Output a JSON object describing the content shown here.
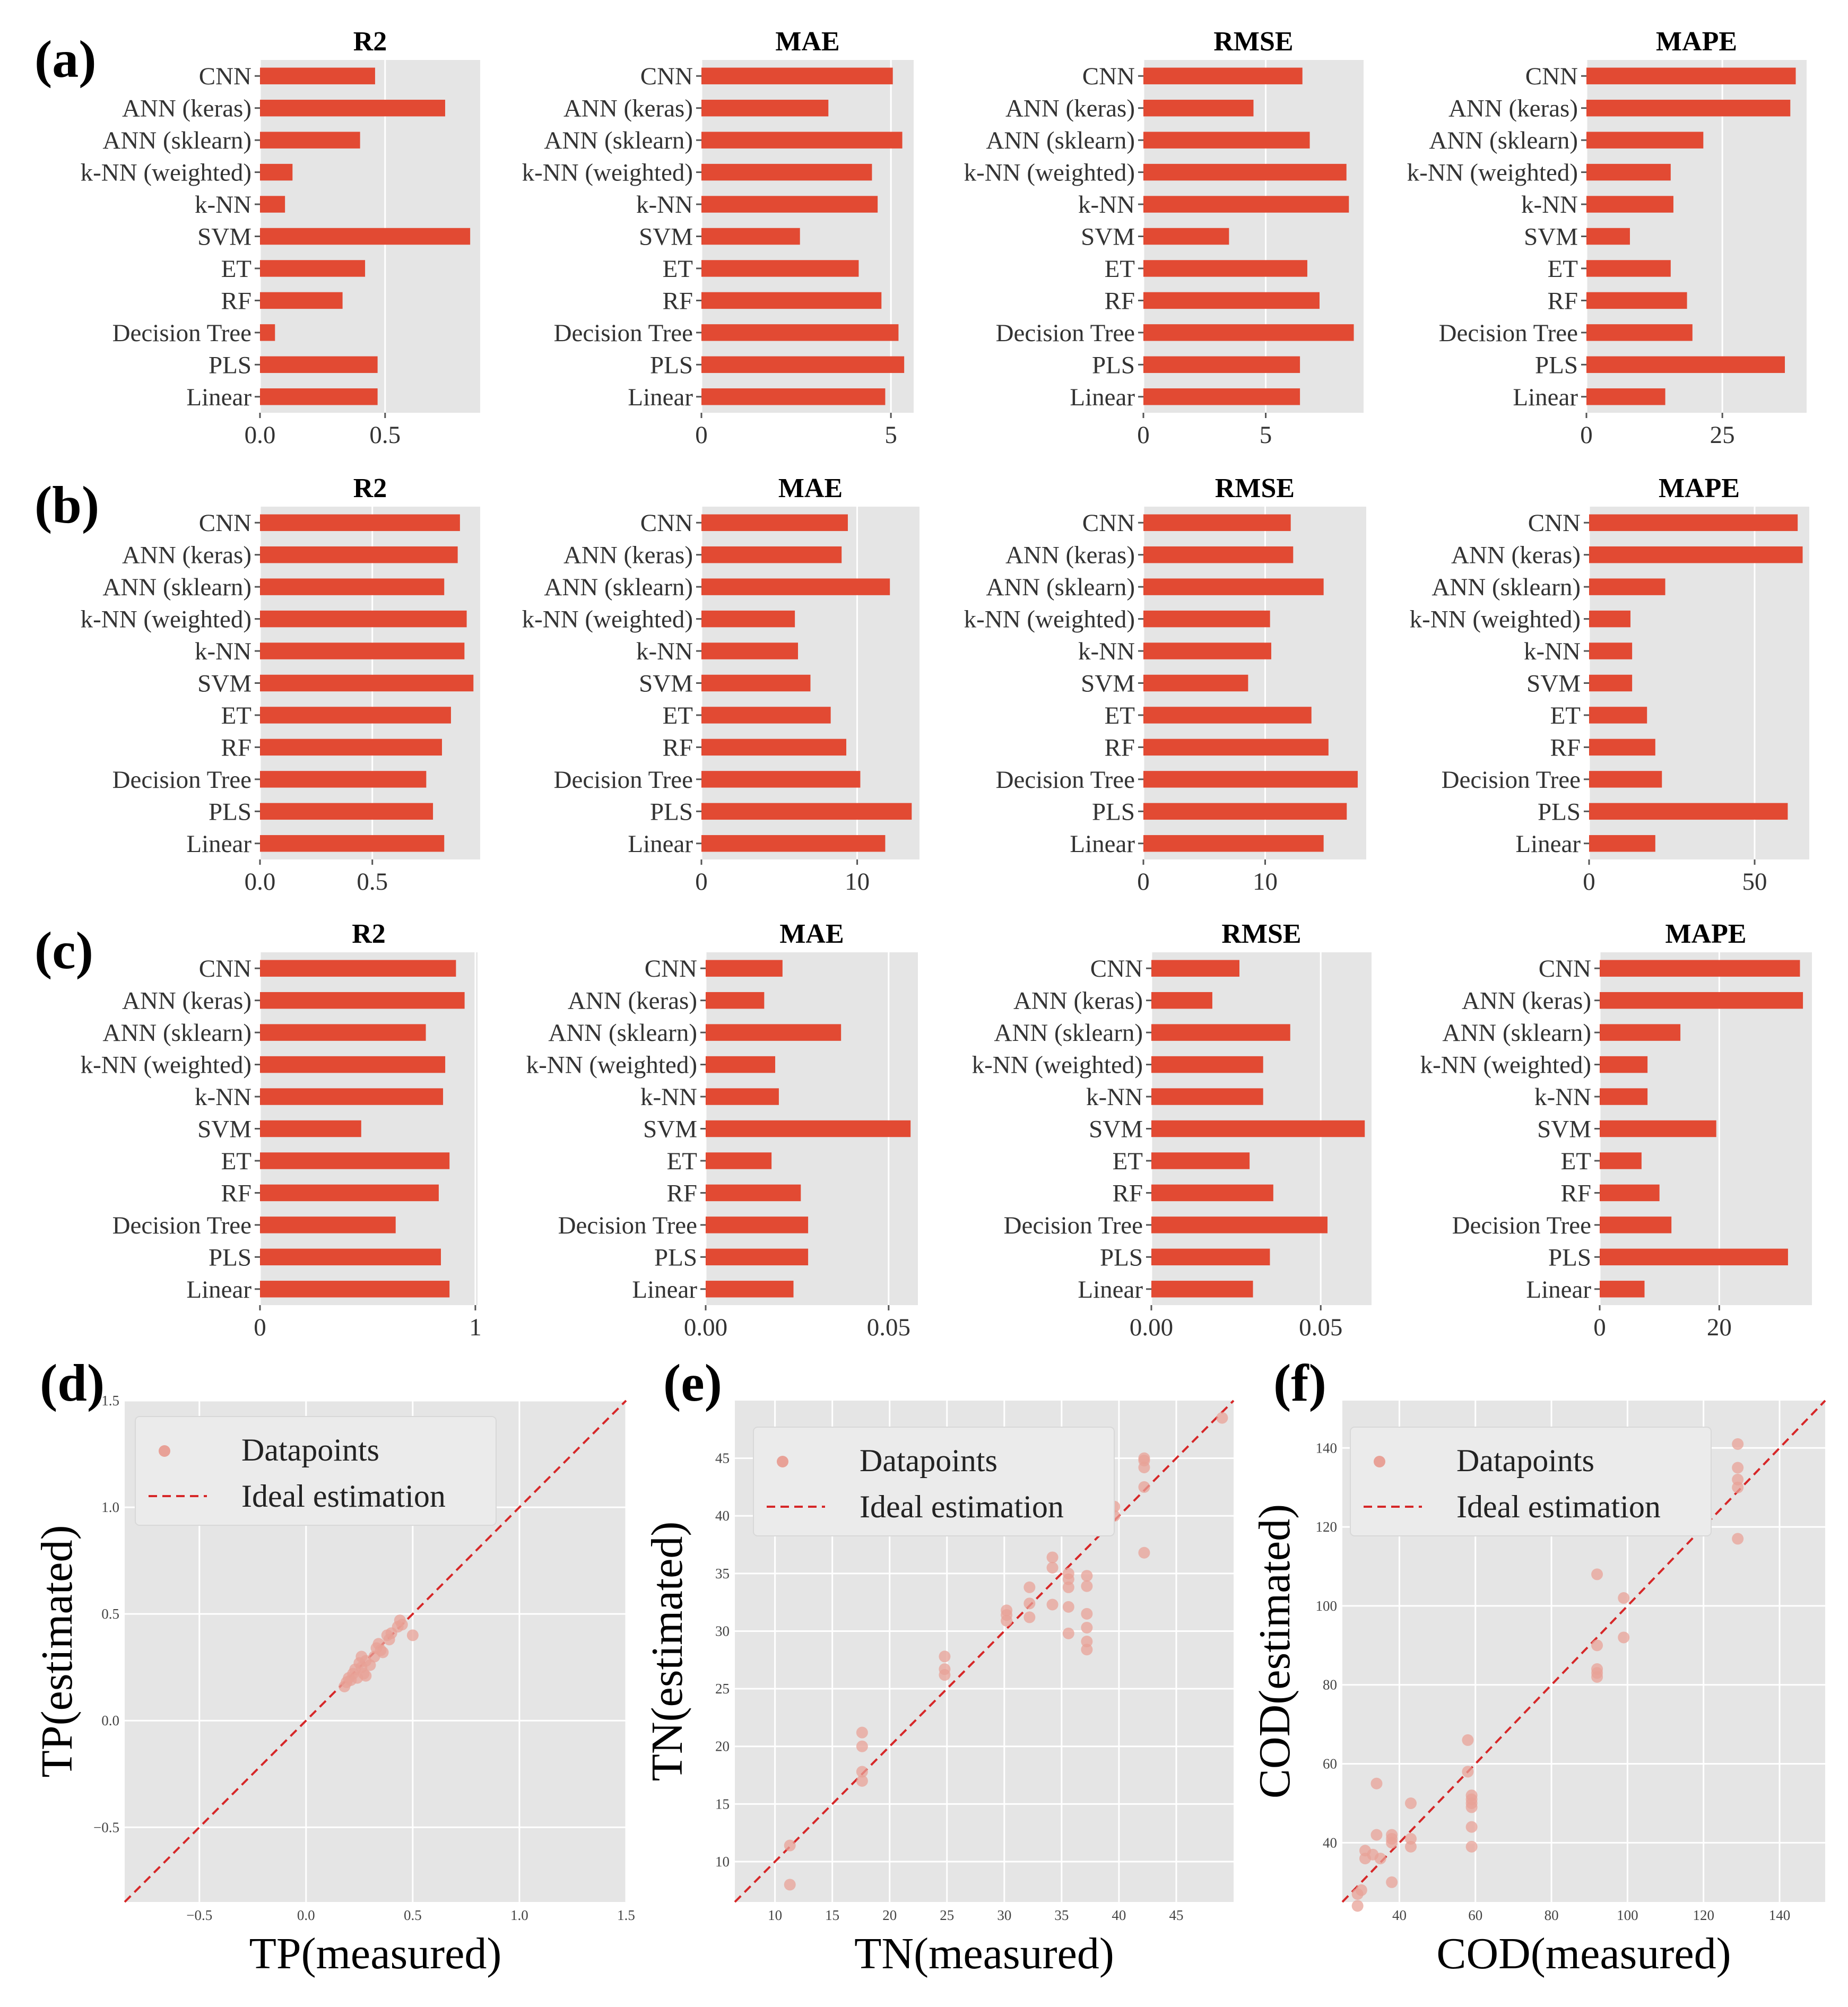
{
  "colors": {
    "bar": "#e24a33",
    "panel_bg": "#e5e5e5",
    "grid": "#ffffff",
    "ideal_line": "#d62728",
    "scatter": "#e8a197",
    "text": "#262626"
  },
  "bar_categories": [
    "CNN",
    "ANN (keras)",
    "ANN (sklearn)",
    "k-NN (weighted)",
    "k-NN",
    "SVM",
    "ET",
    "RF",
    "Decision Tree",
    "PLS",
    "Linear"
  ],
  "legend": {
    "datapoints": "Datapoints",
    "ideal": "Ideal estimation"
  },
  "chart_data": [
    {
      "id": "a-R2",
      "panel": "(a)",
      "type": "bar",
      "orientation": "horizontal",
      "title": "R2",
      "categories": [
        "CNN",
        "ANN (keras)",
        "ANN (sklearn)",
        "k-NN (weighted)",
        "k-NN",
        "SVM",
        "ET",
        "RF",
        "Decision Tree",
        "PLS",
        "Linear"
      ],
      "values": [
        0.46,
        0.74,
        0.4,
        0.13,
        0.1,
        0.84,
        0.42,
        0.33,
        0.06,
        0.47,
        0.47
      ],
      "xlim": [
        0,
        0.88
      ],
      "xticks": [
        0,
        0.5
      ],
      "xtick_labels": [
        "0.0",
        "0.5"
      ]
    },
    {
      "id": "a-MAE",
      "panel": "(a)",
      "type": "bar",
      "orientation": "horizontal",
      "title": "MAE",
      "categories": [
        "CNN",
        "ANN (keras)",
        "ANN (sklearn)",
        "k-NN (weighted)",
        "k-NN",
        "SVM",
        "ET",
        "RF",
        "Decision Tree",
        "PLS",
        "Linear"
      ],
      "values": [
        5.05,
        3.35,
        5.3,
        4.5,
        4.65,
        2.6,
        4.15,
        4.75,
        5.2,
        5.35,
        4.85
      ],
      "xlim": [
        0,
        5.6
      ],
      "xticks": [
        0,
        5
      ],
      "xtick_labels": [
        "0",
        "5"
      ]
    },
    {
      "id": "a-RMSE",
      "panel": "(a)",
      "type": "bar",
      "orientation": "horizontal",
      "title": "RMSE",
      "categories": [
        "CNN",
        "ANN (keras)",
        "ANN (sklearn)",
        "k-NN (weighted)",
        "k-NN",
        "SVM",
        "ET",
        "RF",
        "Decision Tree",
        "PLS",
        "Linear"
      ],
      "values": [
        6.5,
        4.5,
        6.8,
        8.3,
        8.4,
        3.5,
        6.7,
        7.2,
        8.6,
        6.4,
        6.4
      ],
      "xlim": [
        0,
        9.0
      ],
      "xticks": [
        0,
        5
      ],
      "xtick_labels": [
        "0",
        "5"
      ]
    },
    {
      "id": "a-MAPE",
      "panel": "(a)",
      "type": "bar",
      "orientation": "horizontal",
      "title": "MAPE",
      "categories": [
        "CNN",
        "ANN (keras)",
        "ANN (sklearn)",
        "k-NN (weighted)",
        "k-NN",
        "SVM",
        "ET",
        "RF",
        "Decision Tree",
        "PLS",
        "Linear"
      ],
      "values": [
        38.5,
        37.5,
        21.5,
        15.5,
        16.0,
        8.0,
        15.5,
        18.5,
        19.5,
        36.5,
        14.5
      ],
      "xlim": [
        0,
        40.5
      ],
      "xticks": [
        0,
        25
      ],
      "xtick_labels": [
        "0",
        "25"
      ]
    },
    {
      "id": "b-R2",
      "panel": "(b)",
      "type": "bar",
      "orientation": "horizontal",
      "title": "R2",
      "categories": [
        "CNN",
        "ANN (keras)",
        "ANN (sklearn)",
        "k-NN (weighted)",
        "k-NN",
        "SVM",
        "ET",
        "RF",
        "Decision Tree",
        "PLS",
        "Linear"
      ],
      "values": [
        0.89,
        0.88,
        0.82,
        0.92,
        0.91,
        0.95,
        0.85,
        0.81,
        0.74,
        0.77,
        0.82
      ],
      "xlim": [
        0,
        0.98
      ],
      "xticks": [
        0,
        0.5
      ],
      "xtick_labels": [
        "0.0",
        "0.5"
      ]
    },
    {
      "id": "b-MAE",
      "panel": "(b)",
      "type": "bar",
      "orientation": "horizontal",
      "title": "MAE",
      "categories": [
        "CNN",
        "ANN (keras)",
        "ANN (sklearn)",
        "k-NN (weighted)",
        "k-NN",
        "SVM",
        "ET",
        "RF",
        "Decision Tree",
        "PLS",
        "Linear"
      ],
      "values": [
        9.4,
        9.0,
        12.1,
        6.0,
        6.2,
        7.0,
        8.3,
        9.3,
        10.2,
        13.5,
        11.8
      ],
      "xlim": [
        0,
        14.0
      ],
      "xticks": [
        0,
        10
      ],
      "xtick_labels": [
        "0",
        "10"
      ]
    },
    {
      "id": "b-RMSE",
      "panel": "(b)",
      "type": "bar",
      "orientation": "horizontal",
      "title": "RMSE",
      "categories": [
        "CNN",
        "ANN (keras)",
        "ANN (sklearn)",
        "k-NN (weighted)",
        "k-NN",
        "SVM",
        "ET",
        "RF",
        "Decision Tree",
        "PLS",
        "Linear"
      ],
      "values": [
        12.1,
        12.3,
        14.8,
        10.4,
        10.5,
        8.6,
        13.8,
        15.2,
        17.6,
        16.7,
        14.8
      ],
      "xlim": [
        0,
        18.3
      ],
      "xticks": [
        0,
        10
      ],
      "xtick_labels": [
        "0",
        "10"
      ]
    },
    {
      "id": "b-MAPE",
      "panel": "(b)",
      "type": "bar",
      "orientation": "horizontal",
      "title": "MAPE",
      "categories": [
        "CNN",
        "ANN (keras)",
        "ANN (sklearn)",
        "k-NN (weighted)",
        "k-NN",
        "SVM",
        "ET",
        "RF",
        "Decision Tree",
        "PLS",
        "Linear"
      ],
      "values": [
        63,
        64.5,
        23,
        12.5,
        13,
        13,
        17.5,
        20,
        22,
        60,
        20
      ],
      "xlim": [
        0,
        66.5
      ],
      "xticks": [
        0,
        50
      ],
      "xtick_labels": [
        "0",
        "50"
      ]
    },
    {
      "id": "c-R2",
      "panel": "(c)",
      "type": "bar",
      "orientation": "horizontal",
      "title": "R2",
      "categories": [
        "CNN",
        "ANN (keras)",
        "ANN (sklearn)",
        "k-NN (weighted)",
        "k-NN",
        "SVM",
        "ET",
        "RF",
        "Decision Tree",
        "PLS",
        "Linear"
      ],
      "values": [
        0.91,
        0.95,
        0.77,
        0.86,
        0.85,
        0.47,
        0.88,
        0.83,
        0.63,
        0.84,
        0.88
      ],
      "xlim": [
        0,
        1.01
      ],
      "xticks": [
        0,
        1
      ],
      "xtick_labels": [
        "0",
        "1"
      ]
    },
    {
      "id": "c-MAE",
      "panel": "(c)",
      "type": "bar",
      "orientation": "horizontal",
      "title": "MAE",
      "categories": [
        "CNN",
        "ANN (keras)",
        "ANN (sklearn)",
        "k-NN (weighted)",
        "k-NN",
        "SVM",
        "ET",
        "RF",
        "Decision Tree",
        "PLS",
        "Linear"
      ],
      "values": [
        0.021,
        0.016,
        0.037,
        0.019,
        0.02,
        0.056,
        0.018,
        0.026,
        0.028,
        0.028,
        0.024
      ],
      "xlim": [
        0,
        0.058
      ],
      "xticks": [
        0,
        0.05
      ],
      "xtick_labels": [
        "0.00",
        "0.05"
      ]
    },
    {
      "id": "c-RMSE",
      "panel": "(c)",
      "type": "bar",
      "orientation": "horizontal",
      "title": "RMSE",
      "categories": [
        "CNN",
        "ANN (keras)",
        "ANN (sklearn)",
        "k-NN (weighted)",
        "k-NN",
        "SVM",
        "ET",
        "RF",
        "Decision Tree",
        "PLS",
        "Linear"
      ],
      "values": [
        0.026,
        0.018,
        0.041,
        0.033,
        0.033,
        0.063,
        0.029,
        0.036,
        0.052,
        0.035,
        0.03
      ],
      "xlim": [
        0,
        0.065
      ],
      "xticks": [
        0,
        0.05
      ],
      "xtick_labels": [
        "0.00",
        "0.05"
      ]
    },
    {
      "id": "c-MAPE",
      "panel": "(c)",
      "type": "bar",
      "orientation": "horizontal",
      "title": "MAPE",
      "categories": [
        "CNN",
        "ANN (keras)",
        "ANN (sklearn)",
        "k-NN (weighted)",
        "k-NN",
        "SVM",
        "ET",
        "RF",
        "Decision Tree",
        "PLS",
        "Linear"
      ],
      "values": [
        33.5,
        34,
        13.5,
        8,
        8,
        19.5,
        7,
        10,
        12,
        31.5,
        7.5
      ],
      "xlim": [
        0,
        35.5
      ],
      "xticks": [
        0,
        20
      ],
      "xtick_labels": [
        "0",
        "20"
      ]
    },
    {
      "id": "d",
      "panel": "(d)",
      "type": "scatter",
      "xlabel": "TP(measured)",
      "ylabel": "TP(estimated)",
      "xlim": [
        -0.85,
        1.5
      ],
      "ylim": [
        -0.85,
        1.5
      ],
      "xticks": [
        -0.5,
        0.0,
        0.5,
        1.0,
        1.5
      ],
      "xtick_labels": [
        "−0.5",
        "0.0",
        "0.5",
        "1.0",
        "1.5"
      ],
      "yticks": [
        -0.5,
        0.0,
        0.5,
        1.0,
        1.5
      ],
      "ytick_labels": [
        "−0.5",
        "0.0",
        "0.5",
        "1.0",
        "1.5"
      ],
      "legend_position": "top-left",
      "points": [
        [
          0.18,
          0.16
        ],
        [
          0.19,
          0.18
        ],
        [
          0.2,
          0.2
        ],
        [
          0.21,
          0.19
        ],
        [
          0.22,
          0.22
        ],
        [
          0.23,
          0.24
        ],
        [
          0.24,
          0.2
        ],
        [
          0.25,
          0.27
        ],
        [
          0.26,
          0.25
        ],
        [
          0.27,
          0.22
        ],
        [
          0.28,
          0.28
        ],
        [
          0.3,
          0.26
        ],
        [
          0.32,
          0.3
        ],
        [
          0.33,
          0.34
        ],
        [
          0.34,
          0.36
        ],
        [
          0.35,
          0.33
        ],
        [
          0.36,
          0.32
        ],
        [
          0.38,
          0.4
        ],
        [
          0.39,
          0.38
        ],
        [
          0.4,
          0.41
        ],
        [
          0.43,
          0.44
        ],
        [
          0.44,
          0.47
        ],
        [
          0.45,
          0.45
        ],
        [
          0.5,
          0.4
        ],
        [
          0.26,
          0.3
        ],
        [
          0.28,
          0.21
        ]
      ]
    },
    {
      "id": "e",
      "panel": "(e)",
      "type": "scatter",
      "xlabel": "TN(measured)",
      "ylabel": "TN(estimated)",
      "xlim": [
        6.5,
        50
      ],
      "ylim": [
        6.5,
        50
      ],
      "xticks": [
        10,
        15,
        20,
        25,
        30,
        35,
        40,
        45
      ],
      "xtick_labels": [
        "10",
        "15",
        "20",
        "25",
        "30",
        "35",
        "40",
        "45"
      ],
      "yticks": [
        10,
        15,
        20,
        25,
        30,
        35,
        40,
        45
      ],
      "ytick_labels": [
        "10",
        "15",
        "20",
        "25",
        "30",
        "35",
        "40",
        "45"
      ],
      "legend_position": "top-left",
      "points": [
        [
          11.3,
          11.4
        ],
        [
          11.3,
          8.0
        ],
        [
          17.6,
          21.2
        ],
        [
          17.6,
          20.0
        ],
        [
          17.6,
          17.8
        ],
        [
          17.6,
          17.0
        ],
        [
          24.8,
          27.8
        ],
        [
          24.8,
          26.7
        ],
        [
          24.8,
          26.2
        ],
        [
          30.2,
          31.8
        ],
        [
          30.2,
          31.4
        ],
        [
          30.2,
          30.9
        ],
        [
          32.2,
          33.8
        ],
        [
          32.2,
          32.4
        ],
        [
          32.2,
          31.2
        ],
        [
          34.2,
          36.4
        ],
        [
          34.2,
          35.5
        ],
        [
          34.2,
          32.3
        ],
        [
          35.6,
          35.0
        ],
        [
          35.6,
          34.5
        ],
        [
          35.6,
          33.8
        ],
        [
          35.6,
          32.1
        ],
        [
          35.6,
          29.8
        ],
        [
          37.2,
          34.8
        ],
        [
          37.2,
          33.9
        ],
        [
          37.2,
          31.5
        ],
        [
          37.2,
          30.3
        ],
        [
          37.2,
          29.1
        ],
        [
          37.2,
          28.4
        ],
        [
          39.6,
          40.8
        ],
        [
          39.6,
          40.0
        ],
        [
          42.2,
          44.8
        ],
        [
          42.2,
          44.2
        ],
        [
          42.2,
          42.5
        ],
        [
          42.2,
          36.8
        ],
        [
          42.2,
          45.0
        ],
        [
          49.0,
          48.5
        ]
      ]
    },
    {
      "id": "f",
      "panel": "(f)",
      "type": "scatter",
      "xlabel": "COD(measured)",
      "ylabel": "COD(estimated)",
      "xlim": [
        25,
        152
      ],
      "ylim": [
        25,
        152
      ],
      "xticks": [
        40,
        60,
        80,
        100,
        120,
        140
      ],
      "xtick_labels": [
        "40",
        "60",
        "80",
        "100",
        "120",
        "140"
      ],
      "yticks": [
        40,
        60,
        80,
        100,
        120,
        140
      ],
      "ytick_labels": [
        "40",
        "60",
        "80",
        "100",
        "120",
        "140"
      ],
      "legend_position": "top-left",
      "points": [
        [
          29,
          27
        ],
        [
          29,
          24
        ],
        [
          30,
          28
        ],
        [
          31,
          36
        ],
        [
          31,
          38
        ],
        [
          33,
          37
        ],
        [
          34,
          55
        ],
        [
          34,
          42
        ],
        [
          35,
          36
        ],
        [
          38,
          30
        ],
        [
          38,
          42
        ],
        [
          38,
          40
        ],
        [
          38,
          41
        ],
        [
          43,
          41
        ],
        [
          43,
          39
        ],
        [
          43,
          50
        ],
        [
          58,
          66
        ],
        [
          58,
          58
        ],
        [
          59,
          52
        ],
        [
          59,
          51
        ],
        [
          59,
          50
        ],
        [
          59,
          49
        ],
        [
          59,
          44
        ],
        [
          59,
          39
        ],
        [
          92,
          108
        ],
        [
          92,
          90
        ],
        [
          92,
          84
        ],
        [
          92,
          83
        ],
        [
          92,
          82
        ],
        [
          99,
          102
        ],
        [
          99,
          92
        ],
        [
          129,
          141
        ],
        [
          129,
          135
        ],
        [
          129,
          132
        ],
        [
          129,
          130
        ],
        [
          129,
          117
        ]
      ]
    }
  ]
}
